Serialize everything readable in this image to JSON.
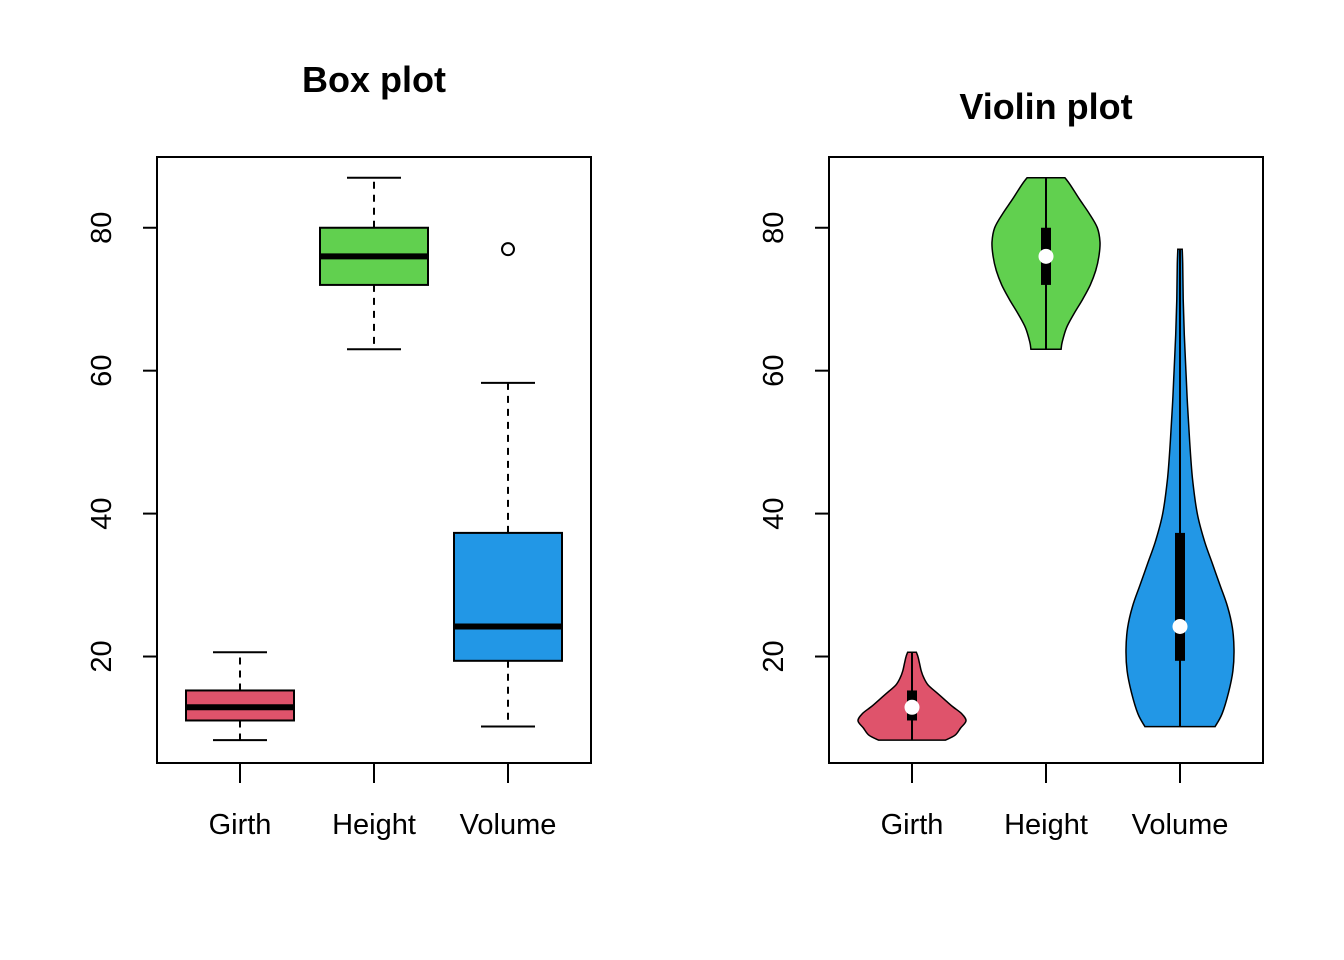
{
  "colors": {
    "Girth": "#DF536B",
    "Height": "#61D04F",
    "Volume": "#2297E6"
  },
  "chart_data": [
    {
      "type": "box",
      "title": "Box plot",
      "categories": [
        "Girth",
        "Height",
        "Volume"
      ],
      "y_ticks": [
        20,
        40,
        60,
        80
      ],
      "ylim": [
        5.1,
        89.9
      ],
      "grid": false,
      "series": [
        {
          "category": "Girth",
          "min": 8.3,
          "q1": 11.05,
          "median": 12.9,
          "q3": 15.25,
          "max": 20.6,
          "outliers": []
        },
        {
          "category": "Height",
          "min": 63,
          "q1": 72,
          "median": 76,
          "q3": 80,
          "max": 87,
          "outliers": []
        },
        {
          "category": "Volume",
          "min": 10.2,
          "q1": 19.4,
          "median": 24.2,
          "q3": 37.3,
          "max": 58.3,
          "outliers": [
            77.0
          ]
        }
      ]
    },
    {
      "type": "violin",
      "title": "Violin plot",
      "categories": [
        "Girth",
        "Height",
        "Volume"
      ],
      "y_ticks": [
        20,
        40,
        60,
        80
      ],
      "ylim": [
        5.1,
        89.9
      ],
      "grid": false,
      "series": [
        {
          "category": "Girth",
          "min": 8.3,
          "q1": 11.05,
          "median": 12.9,
          "q3": 15.25,
          "max": 20.6,
          "density_profile": [
            [
              8.3,
              0.62
            ],
            [
              9,
              0.8
            ],
            [
              10,
              0.9
            ],
            [
              11,
              1.0
            ],
            [
              12,
              0.92
            ],
            [
              13,
              0.75
            ],
            [
              14,
              0.6
            ],
            [
              15,
              0.45
            ],
            [
              16,
              0.3
            ],
            [
              17,
              0.22
            ],
            [
              18,
              0.17
            ],
            [
              19,
              0.14
            ],
            [
              20,
              0.11
            ],
            [
              20.6,
              0.08
            ]
          ]
        },
        {
          "category": "Height",
          "min": 63,
          "q1": 72,
          "median": 76,
          "q3": 80,
          "max": 87,
          "density_profile": [
            [
              63,
              0.28
            ],
            [
              64,
              0.3
            ],
            [
              66,
              0.38
            ],
            [
              68,
              0.52
            ],
            [
              70,
              0.68
            ],
            [
              72,
              0.82
            ],
            [
              74,
              0.92
            ],
            [
              76,
              0.98
            ],
            [
              78,
              1.0
            ],
            [
              80,
              0.95
            ],
            [
              82,
              0.8
            ],
            [
              84,
              0.62
            ],
            [
              86,
              0.45
            ],
            [
              87,
              0.35
            ]
          ]
        },
        {
          "category": "Volume",
          "min": 10.2,
          "q1": 19.4,
          "median": 24.2,
          "q3": 37.3,
          "max": 77.0,
          "density_profile": [
            [
              10.2,
              0.65
            ],
            [
              12,
              0.78
            ],
            [
              15,
              0.9
            ],
            [
              18,
              0.98
            ],
            [
              21,
              1.0
            ],
            [
              24,
              0.97
            ],
            [
              27,
              0.88
            ],
            [
              30,
              0.74
            ],
            [
              33,
              0.6
            ],
            [
              36,
              0.46
            ],
            [
              40,
              0.32
            ],
            [
              45,
              0.23
            ],
            [
              50,
              0.18
            ],
            [
              55,
              0.14
            ],
            [
              60,
              0.11
            ],
            [
              65,
              0.08
            ],
            [
              70,
              0.06
            ],
            [
              75,
              0.05
            ],
            [
              77,
              0.04
            ]
          ]
        }
      ]
    }
  ]
}
